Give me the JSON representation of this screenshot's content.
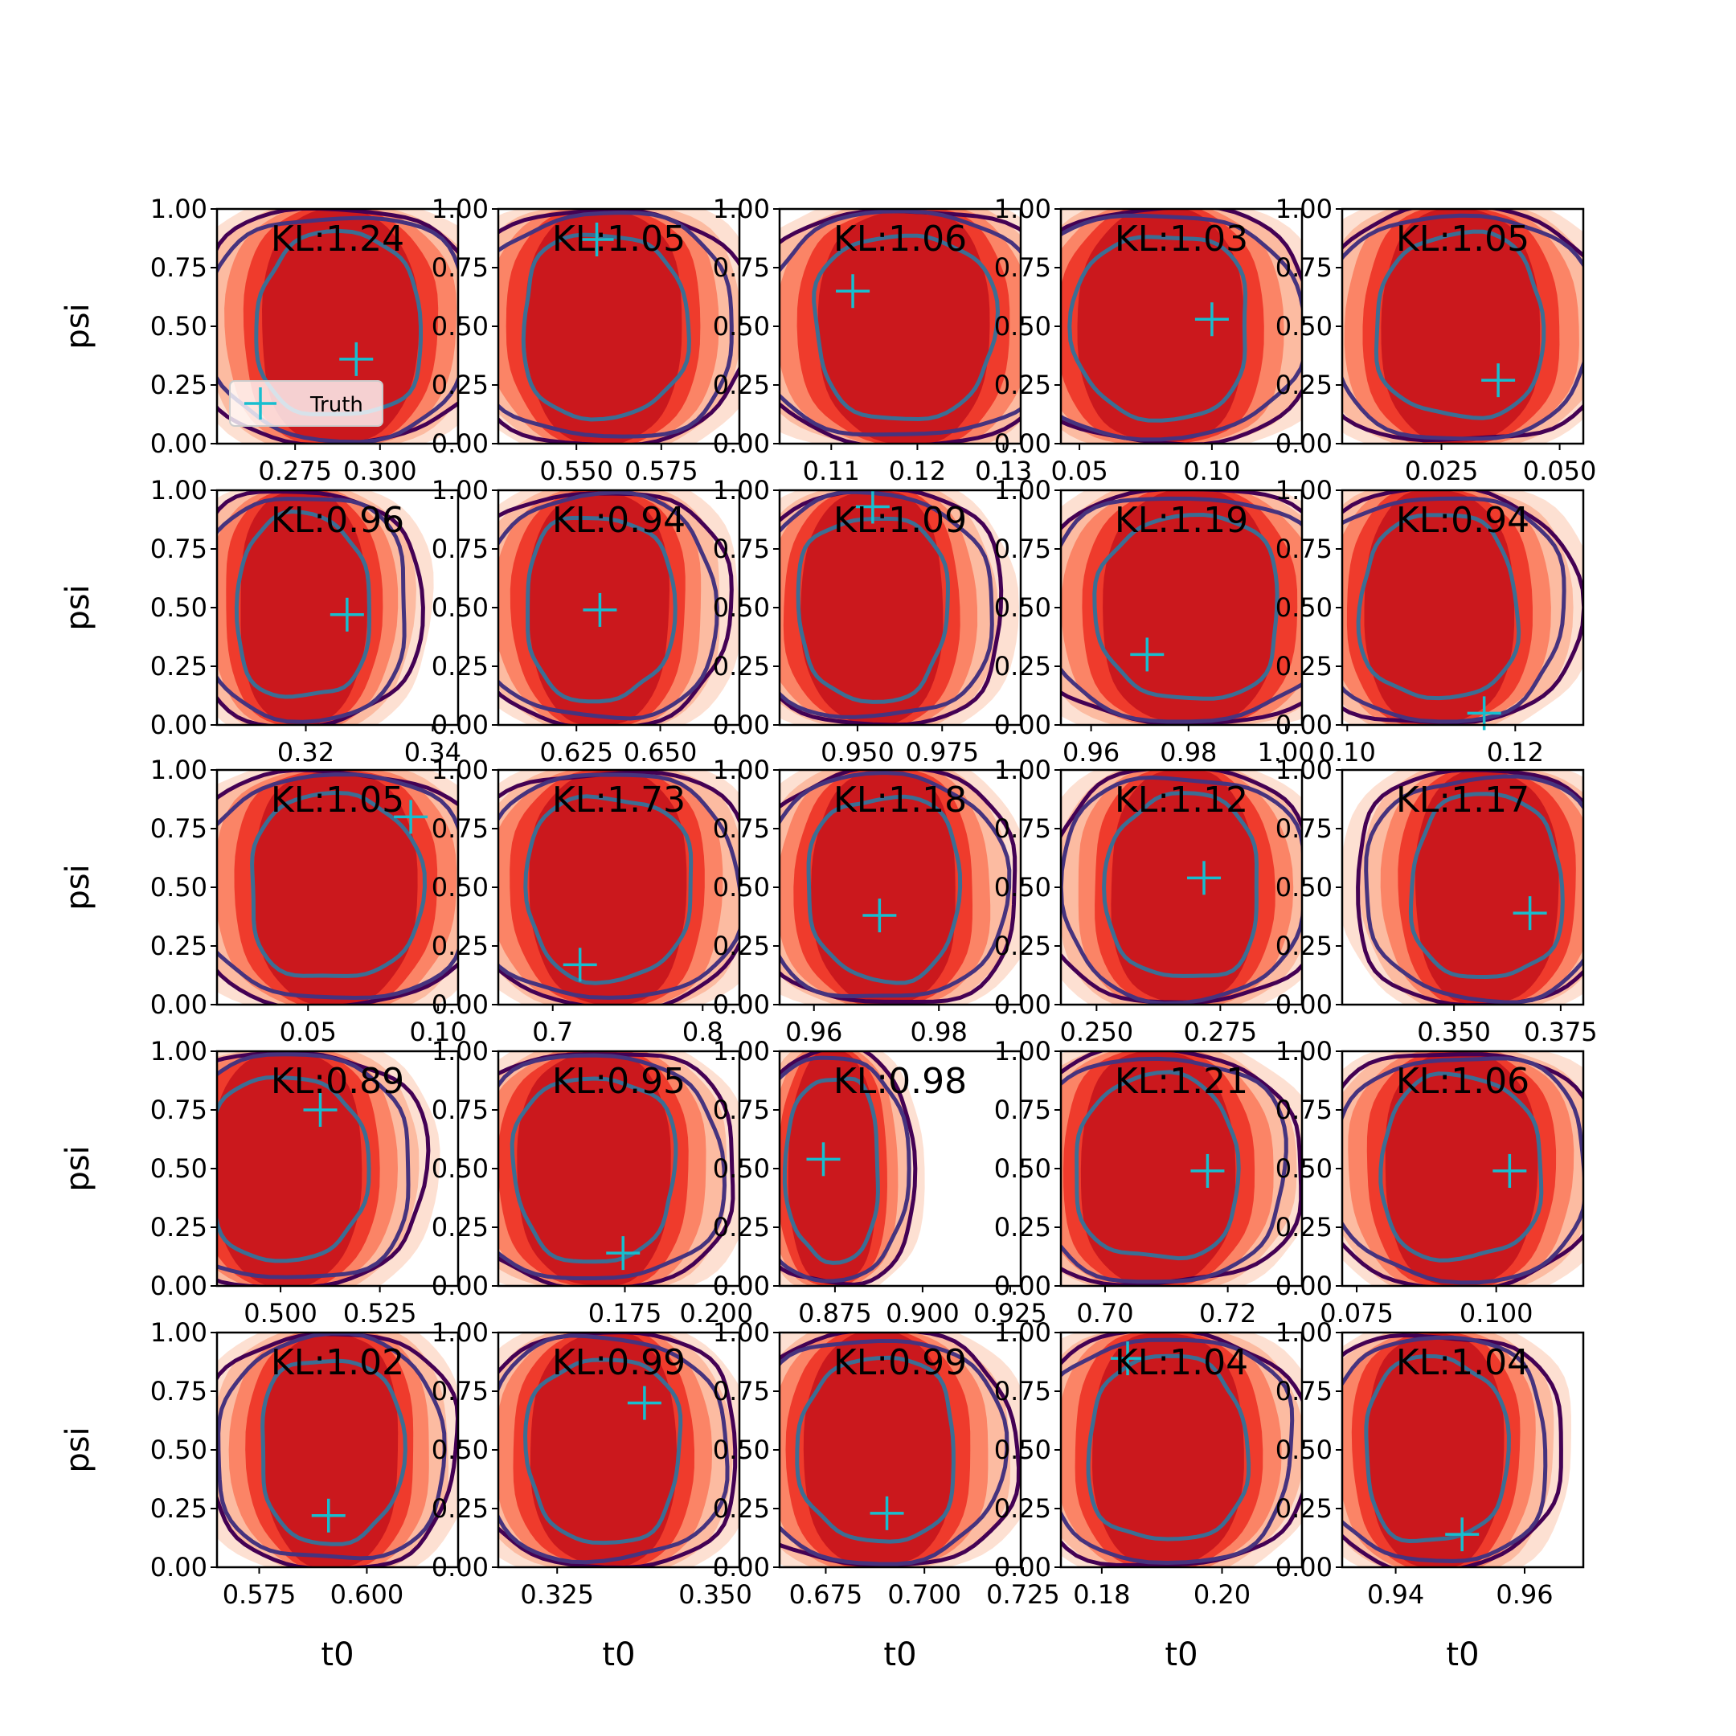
{
  "chart_data": {
    "type": "contour-grid",
    "rows": 5,
    "cols": 5,
    "xlabel": "t0",
    "ylabel": "psi",
    "ylim": [
      0,
      1
    ],
    "yticks": [
      "0.00",
      "0.25",
      "0.50",
      "0.75",
      "1.00"
    ],
    "legend": {
      "label": "Truth",
      "location": "lower left",
      "panel": 0
    },
    "colors": {
      "fill_outer": "#fde0d2",
      "fill_mid": "#fcbba1",
      "fill_mid2": "#fb8466",
      "fill_inner": "#ef3b2c",
      "fill_core": "#cb181d",
      "outer_contour": "#440154",
      "mid_contour": "#46337e",
      "inner_contour": "#3b6e94",
      "truth": "#17becf"
    },
    "panels": [
      {
        "kl": "KL:1.24",
        "xlim": [
          0.252,
          0.323
        ],
        "xticks": [
          "0.275",
          "0.300"
        ],
        "xtick_values": [
          0.275,
          0.3
        ],
        "truth": {
          "t0": 0.293,
          "psi": 0.36
        },
        "center": 0.288,
        "width": 0.022
      },
      {
        "kl": "KL:1.05",
        "xlim": [
          0.527,
          0.598
        ],
        "xticks": [
          "0.550",
          "0.575"
        ],
        "xtick_values": [
          0.55,
          0.575
        ],
        "truth": {
          "t0": 0.556,
          "psi": 0.87
        },
        "center": 0.558,
        "width": 0.022
      },
      {
        "kl": "KL:1.06",
        "xlim": [
          0.104,
          0.132
        ],
        "xticks": [
          "0.11",
          "0.12",
          "0.13"
        ],
        "xtick_values": [
          0.11,
          0.12,
          0.13
        ],
        "truth": {
          "t0": 0.1125,
          "psi": 0.65
        },
        "center": 0.1185,
        "width": 0.0095
      },
      {
        "kl": "KL:1.03",
        "xlim": [
          0.043,
          0.134
        ],
        "xticks": [
          "0.05",
          "0.10"
        ],
        "xtick_values": [
          0.05,
          0.1
        ],
        "truth": {
          "t0": 0.1,
          "psi": 0.53
        },
        "center": 0.081,
        "width": 0.03
      },
      {
        "kl": "KL:1.05",
        "xlim": [
          0.004,
          0.055
        ],
        "xticks": [
          "0.025",
          "0.050"
        ],
        "xtick_values": [
          0.025,
          0.05
        ],
        "truth": {
          "t0": 0.037,
          "psi": 0.27
        },
        "center": 0.029,
        "width": 0.016
      },
      {
        "kl": "KL:0.96",
        "xlim": [
          0.306,
          0.344
        ],
        "xticks": [
          "0.32",
          "0.34"
        ],
        "xtick_values": [
          0.32,
          0.34
        ],
        "truth": {
          "t0": 0.3265,
          "psi": 0.47
        },
        "center": 0.3195,
        "width": 0.0095
      },
      {
        "kl": "KL:0.94",
        "xlim": [
          0.6017,
          0.6736
        ],
        "xticks": [
          "0.625",
          "0.650"
        ],
        "xtick_values": [
          0.625,
          0.65
        ],
        "truth": {
          "t0": 0.632,
          "psi": 0.49
        },
        "center": 0.6318,
        "width": 0.02
      },
      {
        "kl": "KL:1.09",
        "xlim": [
          0.927,
          0.9982
        ],
        "xticks": [
          "0.950",
          "0.975"
        ],
        "xtick_values": [
          0.95,
          0.975
        ],
        "truth": {
          "t0": 0.9545,
          "psi": 0.93
        },
        "center": 0.9545,
        "width": 0.02
      },
      {
        "kl": "KL:1.19",
        "xlim": [
          0.9538,
          1.0033
        ],
        "xticks": [
          "0.96",
          "0.98",
          "1.00"
        ],
        "xtick_values": [
          0.96,
          0.98,
          1.0
        ],
        "truth": {
          "t0": 0.9715,
          "psi": 0.3
        },
        "center": 0.9802,
        "width": 0.017
      },
      {
        "kl": "KL:0.94",
        "xlim": [
          0.0994,
          0.1281
        ],
        "xticks": [
          "0.10",
          "0.12"
        ],
        "xtick_values": [
          0.1,
          0.12
        ],
        "truth": {
          "t0": 0.1163,
          "psi": 0.05
        },
        "center": 0.1109,
        "width": 0.0085
      },
      {
        "kl": "KL:1.05",
        "xlim": [
          0.015,
          0.1077
        ],
        "xticks": [
          "0.05",
          "0.10"
        ],
        "xtick_values": [
          0.05,
          0.1
        ],
        "truth": {
          "t0": 0.0895,
          "psi": 0.8
        },
        "center": 0.0603,
        "width": 0.03
      },
      {
        "kl": "KL:1.73",
        "xlim": [
          0.6637,
          0.8245
        ],
        "xticks": [
          "0.7",
          "0.8"
        ],
        "xtick_values": [
          0.7,
          0.8
        ],
        "truth": {
          "t0": 0.7182,
          "psi": 0.17
        },
        "center": 0.7372,
        "width": 0.05
      },
      {
        "kl": "KL:1.18",
        "xlim": [
          0.9545,
          0.9931
        ],
        "xticks": [
          "0.96",
          "0.98"
        ],
        "xtick_values": [
          0.96,
          0.98
        ],
        "truth": {
          "t0": 0.9705,
          "psi": 0.38
        },
        "center": 0.9713,
        "width": 0.011
      },
      {
        "kl": "KL:1.12",
        "xlim": [
          0.2428,
          0.2915
        ],
        "xticks": [
          "0.250",
          "0.275"
        ],
        "xtick_values": [
          0.25,
          0.275
        ],
        "truth": {
          "t0": 0.2717,
          "psi": 0.54
        },
        "center": 0.2675,
        "width": 0.014
      },
      {
        "kl": "KL:1.17",
        "xlim": [
          0.3238,
          0.3803
        ],
        "xticks": [
          "0.350",
          "0.375"
        ],
        "xtick_values": [
          0.35,
          0.375
        ],
        "truth": {
          "t0": 0.3678,
          "psi": 0.39
        },
        "center": 0.3576,
        "width": 0.016
      },
      {
        "kl": "KL:0.89",
        "xlim": [
          0.484,
          0.5447
        ],
        "xticks": [
          "0.500",
          "0.525"
        ],
        "xtick_values": [
          0.5,
          0.525
        ],
        "truth": {
          "t0": 0.51,
          "psi": 0.75
        },
        "center": 0.5016,
        "width": 0.018
      },
      {
        "kl": "KL:0.95",
        "xlim": [
          0.1404,
          0.2063
        ],
        "xticks": [
          "0.175",
          "0.200"
        ],
        "xtick_values": [
          0.175,
          0.2
        ],
        "truth": {
          "t0": 0.1745,
          "psi": 0.14
        },
        "center": 0.1667,
        "width": 0.02
      },
      {
        "kl": "KL:0.98",
        "xlim": [
          0.8592,
          0.928
        ],
        "xticks": [
          "0.875",
          "0.900",
          "0.925"
        ],
        "xtick_values": [
          0.875,
          0.9,
          0.925
        ],
        "truth": {
          "t0": 0.8717,
          "psi": 0.54
        },
        "center": 0.8744,
        "width": 0.012
      },
      {
        "kl": "KL:1.21",
        "xlim": [
          0.6928,
          0.7321
        ],
        "xticks": [
          "0.70",
          "0.72"
        ],
        "xtick_values": [
          0.7,
          0.72
        ],
        "truth": {
          "t0": 0.7167,
          "psi": 0.49
        },
        "center": 0.7085,
        "width": 0.012
      },
      {
        "kl": "KL:1.06",
        "xlim": [
          0.0724,
          0.1156
        ],
        "xticks": [
          "0.075",
          "0.100"
        ],
        "xtick_values": [
          0.075,
          0.1
        ],
        "truth": {
          "t0": 0.1024,
          "psi": 0.49
        },
        "center": 0.0936,
        "width": 0.013
      },
      {
        "kl": "KL:1.02",
        "xlim": [
          0.5652,
          0.6212
        ],
        "xticks": [
          "0.575",
          "0.600"
        ],
        "xtick_values": [
          0.575,
          0.6
        ],
        "truth": {
          "t0": 0.5911,
          "psi": 0.22
        },
        "center": 0.5917,
        "width": 0.015
      },
      {
        "kl": "KL:0.99",
        "xlim": [
          0.3157,
          0.3538
        ],
        "xticks": [
          "0.325",
          "0.350"
        ],
        "xtick_values": [
          0.325,
          0.35
        ],
        "truth": {
          "t0": 0.3388,
          "psi": 0.7
        },
        "center": 0.3324,
        "width": 0.011
      },
      {
        "kl": "KL:0.99",
        "xlim": [
          0.6633,
          0.7244
        ],
        "xticks": [
          "0.675",
          "0.700",
          "0.725"
        ],
        "xtick_values": [
          0.675,
          0.7,
          0.725
        ],
        "truth": {
          "t0": 0.6905,
          "psi": 0.23
        },
        "center": 0.6883,
        "width": 0.018
      },
      {
        "kl": "KL:1.04",
        "xlim": [
          0.1732,
          0.2133
        ],
        "xticks": [
          "0.18",
          "0.20"
        ],
        "xtick_values": [
          0.18,
          0.2
        ],
        "truth": {
          "t0": 0.1843,
          "psi": 0.89
        },
        "center": 0.1909,
        "width": 0.012
      },
      {
        "kl": "KL:1.04",
        "xlim": [
          0.9317,
          0.9691
        ],
        "xticks": [
          "0.94",
          "0.96"
        ],
        "xtick_values": [
          0.94,
          0.96
        ],
        "truth": {
          "t0": 0.9503,
          "psi": 0.14
        },
        "center": 0.9462,
        "width": 0.01
      }
    ]
  }
}
